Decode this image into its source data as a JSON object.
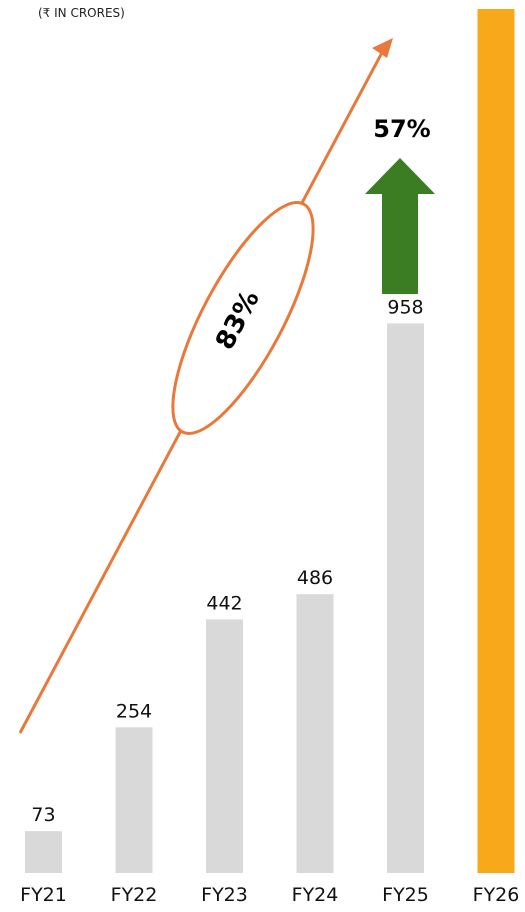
{
  "chart_data": {
    "type": "bar",
    "unit_label": "(₹ IN CRORES)",
    "categories": [
      "FY21",
      "FY22",
      "FY23",
      "FY24",
      "FY25",
      "FY26"
    ],
    "values": [
      73,
      254,
      442,
      486,
      958,
      1506
    ],
    "ylim": [
      0,
      1506
    ],
    "grid": false,
    "colors": {
      "bar_default": "#d9d9d9",
      "bar_highlight": "#f7a81b",
      "trend_arrow": "#e8793a",
      "growth_arrow": "#3a7d22"
    },
    "highlight_category": "FY26",
    "annotations": {
      "trend_growth": "83%",
      "yoy_growth": "57%"
    }
  }
}
